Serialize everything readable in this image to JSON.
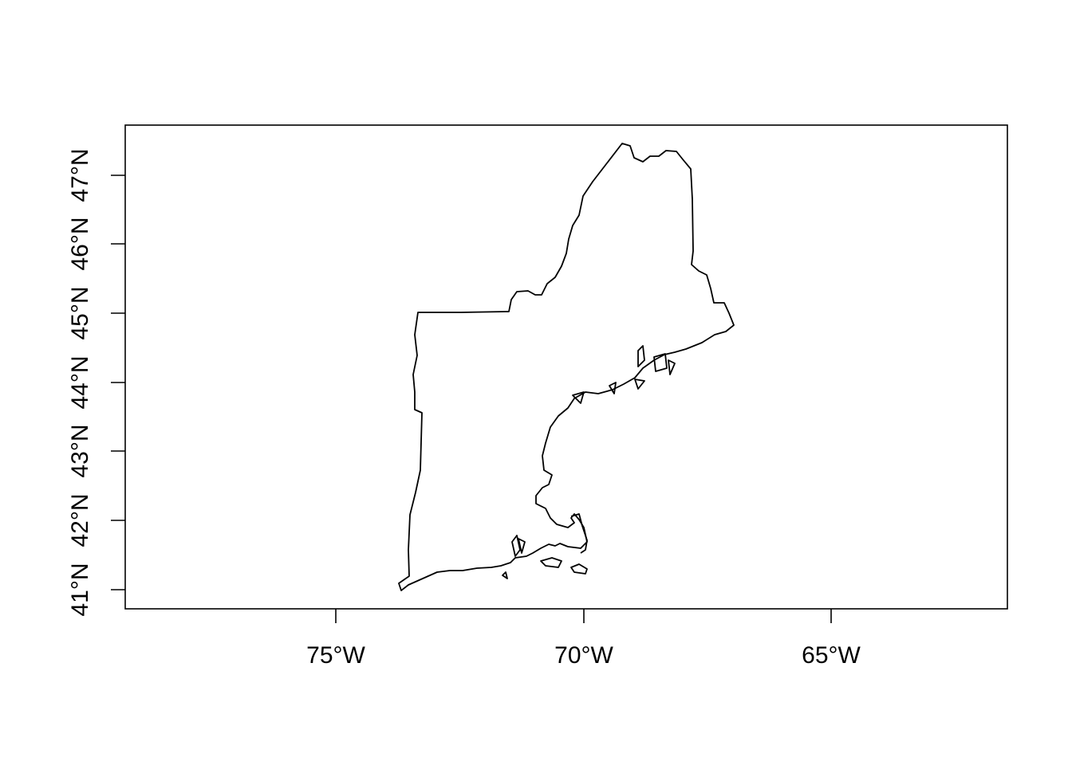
{
  "map": {
    "x_ticks": [
      "75°W",
      "70°W",
      "65°W"
    ],
    "y_ticks": [
      "41°N",
      "42°N",
      "43°N",
      "44°N",
      "45°N",
      "46°N",
      "47°N"
    ],
    "x_range_lon": [
      -79.3,
      -61.5
    ],
    "y_range_lat": [
      40.7,
      47.7
    ],
    "region_shape": "new-england-outline",
    "colors": {
      "line": "#000000",
      "background": "#ffffff"
    }
  }
}
